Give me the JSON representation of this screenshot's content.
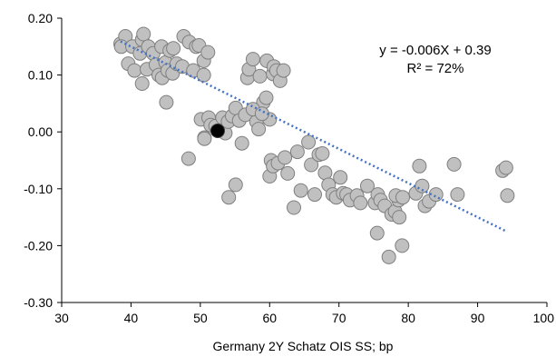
{
  "chart_data": {
    "type": "scatter",
    "title": "",
    "xlabel": "Germany 2Y Schatz OIS SS; bp",
    "ylabel": "",
    "xlim": [
      30,
      100
    ],
    "ylim": [
      -0.3,
      0.2
    ],
    "x_ticks": [
      30,
      40,
      50,
      60,
      70,
      80,
      90,
      100
    ],
    "x_tick_labels": [
      "30",
      "40",
      "50",
      "60",
      "70",
      "80",
      "90",
      "100"
    ],
    "y_ticks": [
      0.2,
      0.1,
      0.0,
      -0.1,
      -0.2,
      -0.3
    ],
    "y_tick_labels": [
      "0.20",
      "0.10",
      "0.00",
      "-0.10",
      "-0.20",
      "-0.30"
    ],
    "grid": false,
    "legend": "none",
    "colors": {
      "point_fill": "#c0c0c0",
      "point_stroke": "#7f7f7f",
      "highlight_fill": "#000000",
      "trendline": "#4472c4",
      "axis": "#000000"
    },
    "trendline": {
      "slope": -0.006,
      "intercept": 0.39,
      "x_range": [
        38.5,
        94
      ],
      "style": "dotted"
    },
    "annotations": [
      "y = -0.006X + 0.39",
      "R² = 72%"
    ],
    "highlight": {
      "x": 52.5,
      "y": 0.002
    },
    "series": [
      {
        "points": [
          [
            38.5,
            0.155
          ],
          [
            39.2,
            0.168
          ],
          [
            38.6,
            0.15
          ],
          [
            39.6,
            0.12
          ],
          [
            40.2,
            0.15
          ],
          [
            40.5,
            0.108
          ],
          [
            41.3,
            0.138
          ],
          [
            41.6,
            0.162
          ],
          [
            41.8,
            0.172
          ],
          [
            41.6,
            0.085
          ],
          [
            42.5,
            0.15
          ],
          [
            42.3,
            0.11
          ],
          [
            43.2,
            0.138
          ],
          [
            43.6,
            0.118
          ],
          [
            44.0,
            0.1
          ],
          [
            44.5,
            0.095
          ],
          [
            44.4,
            0.15
          ],
          [
            45.0,
            0.122
          ],
          [
            45.6,
            0.143
          ],
          [
            45.3,
            0.108
          ],
          [
            46.0,
            0.103
          ],
          [
            46.6,
            0.12
          ],
          [
            46.1,
            0.147
          ],
          [
            47.4,
            0.115
          ],
          [
            47.6,
            0.168
          ],
          [
            48.4,
            0.158
          ],
          [
            49.0,
            0.108
          ],
          [
            49.4,
            0.15
          ],
          [
            49.8,
            0.152
          ],
          [
            50.5,
            0.125
          ],
          [
            51.1,
            0.14
          ],
          [
            50.5,
            0.1
          ],
          [
            45.1,
            0.052
          ],
          [
            50.1,
            0.022
          ],
          [
            50.6,
            -0.01
          ],
          [
            50.6,
            -0.012
          ],
          [
            51.2,
            0.025
          ],
          [
            51.5,
            0.012
          ],
          [
            52.2,
            0.01
          ],
          [
            53.2,
            0.025
          ],
          [
            53.6,
            -0.002
          ],
          [
            54.0,
            0.018
          ],
          [
            54.6,
            0.028
          ],
          [
            55.1,
            0.042
          ],
          [
            55.6,
            0.02
          ],
          [
            56.0,
            -0.02
          ],
          [
            56.5,
            0.03
          ],
          [
            56.8,
            0.095
          ],
          [
            57.0,
            0.11
          ],
          [
            57.6,
            0.128
          ],
          [
            58.1,
            0.018
          ],
          [
            58.4,
            0.005
          ],
          [
            58.6,
            0.098
          ],
          [
            59.1,
            0.052
          ],
          [
            59.6,
            0.125
          ],
          [
            60.0,
            0.022
          ],
          [
            60.5,
            0.102
          ],
          [
            60.6,
            0.115
          ],
          [
            61.0,
            0.108
          ],
          [
            61.5,
            0.09
          ],
          [
            62.0,
            0.108
          ],
          [
            57.6,
            0.04
          ],
          [
            58.9,
            0.032
          ],
          [
            59.5,
            0.06
          ],
          [
            60.2,
            -0.05
          ],
          [
            60.0,
            -0.078
          ],
          [
            60.5,
            -0.06
          ],
          [
            61.2,
            -0.055
          ],
          [
            62.2,
            -0.045
          ],
          [
            62.6,
            -0.073
          ],
          [
            63.5,
            -0.133
          ],
          [
            64.0,
            -0.035
          ],
          [
            64.5,
            -0.103
          ],
          [
            65.6,
            -0.018
          ],
          [
            66.0,
            -0.058
          ],
          [
            66.5,
            -0.11
          ],
          [
            67.1,
            -0.04
          ],
          [
            67.6,
            -0.038
          ],
          [
            68.0,
            -0.072
          ],
          [
            68.5,
            -0.093
          ],
          [
            69.1,
            -0.11
          ],
          [
            69.6,
            -0.115
          ],
          [
            70.2,
            -0.08
          ],
          [
            70.6,
            -0.108
          ],
          [
            71.1,
            -0.11
          ],
          [
            71.6,
            -0.12
          ],
          [
            72.6,
            -0.112
          ],
          [
            73.1,
            -0.125
          ],
          [
            74.1,
            -0.095
          ],
          [
            75.2,
            -0.125
          ],
          [
            75.6,
            -0.11
          ],
          [
            76.0,
            -0.12
          ],
          [
            75.5,
            -0.178
          ],
          [
            76.6,
            -0.13
          ],
          [
            77.2,
            -0.22
          ],
          [
            77.6,
            -0.145
          ],
          [
            78.1,
            -0.14
          ],
          [
            78.6,
            -0.12
          ],
          [
            78.2,
            -0.112
          ],
          [
            78.7,
            -0.15
          ],
          [
            79.1,
            -0.2
          ],
          [
            79.2,
            -0.115
          ],
          [
            81.1,
            -0.108
          ],
          [
            81.6,
            -0.06
          ],
          [
            82.0,
            -0.095
          ],
          [
            82.4,
            -0.13
          ],
          [
            83.0,
            -0.122
          ],
          [
            84.0,
            -0.11
          ],
          [
            86.6,
            -0.057
          ],
          [
            87.1,
            -0.11
          ],
          [
            93.6,
            -0.068
          ],
          [
            94.1,
            -0.063
          ],
          [
            94.3,
            -0.112
          ],
          [
            48.3,
            -0.047
          ],
          [
            54.1,
            -0.115
          ],
          [
            55.1,
            -0.093
          ]
        ]
      }
    ]
  }
}
